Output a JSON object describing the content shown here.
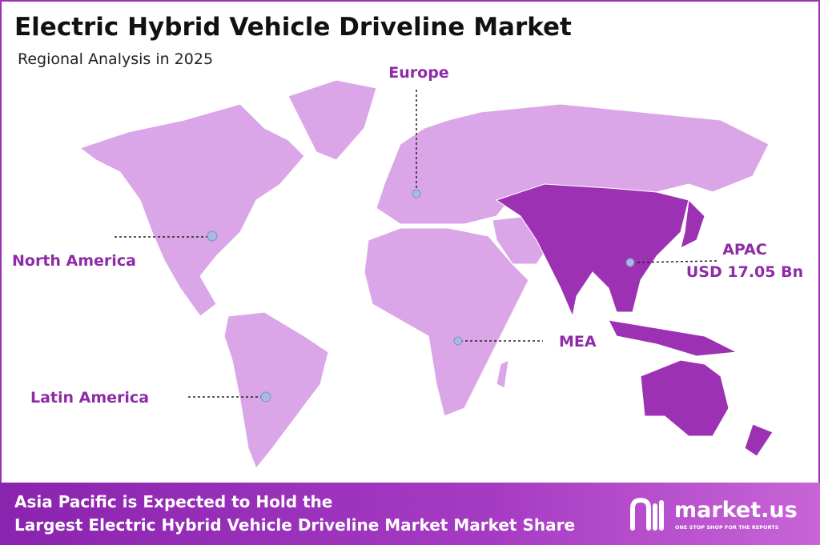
{
  "header": {
    "title": "Electric Hybrid Vehicle Driveline Market",
    "subtitle": "Regional Analysis in 2025"
  },
  "regions": [
    {
      "label": "Europe"
    },
    {
      "label": "North America"
    },
    {
      "label": "APAC",
      "value_label": "USD 17.05 Bn"
    },
    {
      "label": "MEA"
    },
    {
      "label": "Latin America"
    }
  ],
  "footer": {
    "lines": [
      "Asia Pacific is Expected to Hold the",
      "Largest Electric Hybrid Vehicle Driveline Market Market Share"
    ]
  },
  "brand": {
    "name": "market.us",
    "tagline": "ONE STOP SHOP FOR THE REPORTS"
  }
}
